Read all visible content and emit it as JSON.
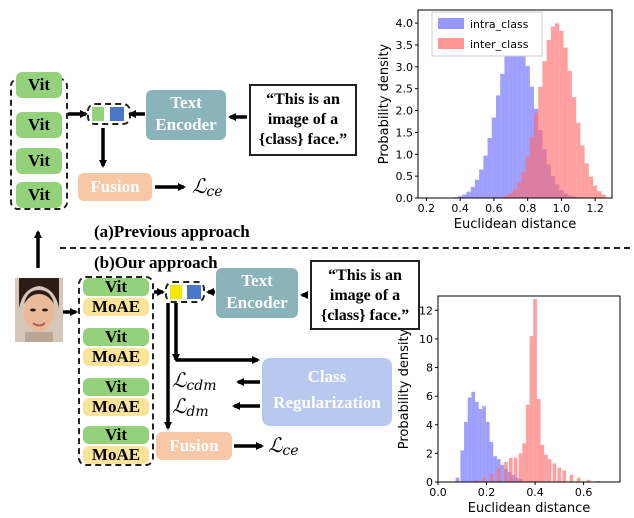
{
  "section_a": {
    "label": "(a)Previous approach",
    "vit_label": "Vit"
  },
  "section_b": {
    "label": "(b)Our approach",
    "vit_label": "Vit",
    "moae_label": "MoAE"
  },
  "text_encoder": "Text\nEncoder",
  "prompt_text": "“This is an image of a {class} face.”",
  "fusion_label": "Fusion",
  "class_reg_label": "Class\nRegularization",
  "losses": {
    "ce": "ℒ",
    "ce_sub": "ce",
    "cdm_sub": "cdm",
    "dm_sub": "dm"
  },
  "colors": {
    "vit": "#93d27a",
    "moae": "#fbe39a",
    "teal": "#8ab4b9",
    "fusion": "#f6c8a6",
    "classreg": "#b7c9ef",
    "blue_token": "#4a78c8",
    "yellow_token": "#f5e800",
    "intra": "#6b6bff",
    "inter": "#ff6b6b"
  },
  "chart_data": [
    {
      "type": "bar",
      "xlabel": "Euclidean distance",
      "ylabel": "Probability density",
      "xlim": [
        0.15,
        1.3
      ],
      "ylim": [
        0,
        4.3
      ],
      "xticks": [
        "0.2",
        "0.4",
        "0.6",
        "0.8",
        "1.0",
        "1.2"
      ],
      "yticks": [
        "0.0",
        "0.5",
        "1.0",
        "1.5",
        "2.0",
        "2.5",
        "3.0",
        "3.5",
        "4.0"
      ],
      "legend": "top-left",
      "series": [
        {
          "name": "intra_class",
          "center": 0.73,
          "sd": 0.11,
          "peak": 3.7
        },
        {
          "name": "inter_class",
          "center": 0.97,
          "sd": 0.1,
          "peak": 4.0
        }
      ]
    },
    {
      "type": "bar",
      "xlabel": "Euclidean distance",
      "ylabel": "Probability density",
      "xlim": [
        0.0,
        0.75
      ],
      "ylim": [
        0,
        13
      ],
      "xticks": [
        "0.0",
        "0.2",
        "0.4",
        "0.6"
      ],
      "yticks": [
        "0",
        "2",
        "4",
        "6",
        "8",
        "10",
        "12"
      ],
      "series": [
        {
          "name": "intra",
          "values": [
            [
              0.08,
              0.3
            ],
            [
              0.1,
              2.2
            ],
            [
              0.115,
              4.2
            ],
            [
              0.13,
              5.9
            ],
            [
              0.145,
              6.3
            ],
            [
              0.16,
              5.6
            ],
            [
              0.175,
              5.1
            ],
            [
              0.19,
              5.3
            ],
            [
              0.205,
              4.2
            ],
            [
              0.22,
              2.8
            ],
            [
              0.235,
              1.8
            ],
            [
              0.25,
              1.6
            ],
            [
              0.265,
              1.2
            ],
            [
              0.28,
              0.9
            ],
            [
              0.295,
              0.7
            ],
            [
              0.31,
              0.5
            ],
            [
              0.325,
              0.3
            ],
            [
              0.34,
              0.2
            ]
          ]
        },
        {
          "name": "inter",
          "values": [
            [
              0.16,
              0.1
            ],
            [
              0.19,
              0.3
            ],
            [
              0.22,
              0.6
            ],
            [
              0.25,
              1.0
            ],
            [
              0.28,
              1.4
            ],
            [
              0.3,
              1.7
            ],
            [
              0.32,
              1.7
            ],
            [
              0.34,
              2.0
            ],
            [
              0.355,
              2.7
            ],
            [
              0.37,
              5.4
            ],
            [
              0.385,
              10.2
            ],
            [
              0.4,
              12.8
            ],
            [
              0.415,
              5.8
            ],
            [
              0.43,
              2.6
            ],
            [
              0.445,
              1.9
            ],
            [
              0.46,
              1.6
            ],
            [
              0.48,
              1.3
            ],
            [
              0.5,
              1.0
            ],
            [
              0.52,
              0.8
            ],
            [
              0.55,
              0.5
            ],
            [
              0.58,
              0.3
            ],
            [
              0.62,
              0.15
            ],
            [
              0.66,
              0.07
            ]
          ]
        }
      ]
    }
  ]
}
